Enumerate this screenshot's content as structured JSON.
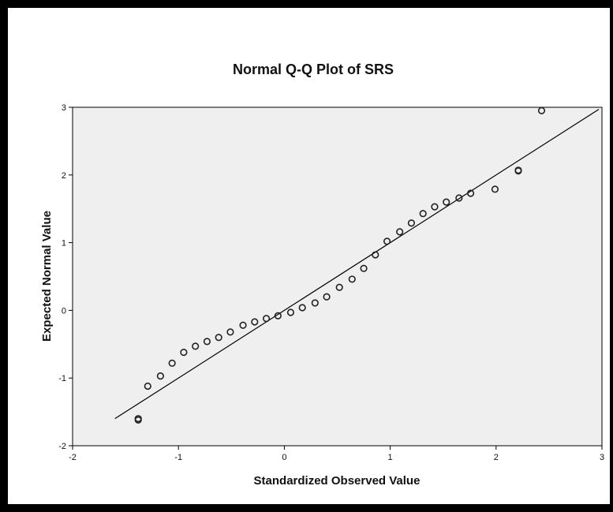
{
  "chart_data": {
    "type": "scatter",
    "title": "Normal Q-Q Plot of SRS",
    "xlabel": "Standardized Observed Value",
    "ylabel": "Expected Normal Value",
    "xlim": [
      -2,
      3
    ],
    "ylim": [
      -2,
      3
    ],
    "xticks": [
      "-2",
      "-1",
      "0",
      "1",
      "2",
      "3"
    ],
    "yticks": [
      "-2",
      "-1",
      "0",
      "1",
      "2",
      "3"
    ],
    "grid": false,
    "reference_line": {
      "x": [
        -1.6,
        2.97
      ],
      "y": [
        -1.6,
        2.97
      ]
    },
    "points": [
      {
        "x": -1.38,
        "y": -1.6
      },
      {
        "x": -1.38,
        "y": -1.62
      },
      {
        "x": -1.29,
        "y": -1.12
      },
      {
        "x": -1.17,
        "y": -0.97
      },
      {
        "x": -1.06,
        "y": -0.78
      },
      {
        "x": -0.95,
        "y": -0.62
      },
      {
        "x": -0.84,
        "y": -0.53
      },
      {
        "x": -0.73,
        "y": -0.46
      },
      {
        "x": -0.62,
        "y": -0.4
      },
      {
        "x": -0.51,
        "y": -0.32
      },
      {
        "x": -0.39,
        "y": -0.22
      },
      {
        "x": -0.28,
        "y": -0.17
      },
      {
        "x": -0.17,
        "y": -0.12
      },
      {
        "x": -0.06,
        "y": -0.08
      },
      {
        "x": 0.06,
        "y": -0.03
      },
      {
        "x": 0.17,
        "y": 0.04
      },
      {
        "x": 0.29,
        "y": 0.11
      },
      {
        "x": 0.4,
        "y": 0.2
      },
      {
        "x": 0.52,
        "y": 0.34
      },
      {
        "x": 0.64,
        "y": 0.46
      },
      {
        "x": 0.75,
        "y": 0.62
      },
      {
        "x": 0.86,
        "y": 0.82
      },
      {
        "x": 0.97,
        "y": 1.02
      },
      {
        "x": 1.09,
        "y": 1.16
      },
      {
        "x": 1.2,
        "y": 1.29
      },
      {
        "x": 1.31,
        "y": 1.43
      },
      {
        "x": 1.42,
        "y": 1.53
      },
      {
        "x": 1.53,
        "y": 1.6
      },
      {
        "x": 1.65,
        "y": 1.66
      },
      {
        "x": 1.76,
        "y": 1.73
      },
      {
        "x": 1.99,
        "y": 1.79
      },
      {
        "x": 2.21,
        "y": 2.07
      },
      {
        "x": 2.21,
        "y": 2.06
      },
      {
        "x": 2.43,
        "y": 2.95
      }
    ]
  },
  "colors": {
    "plot_background": "#efefef",
    "marker_edge": "#222222",
    "line": "#000000",
    "frame": "#000000"
  }
}
